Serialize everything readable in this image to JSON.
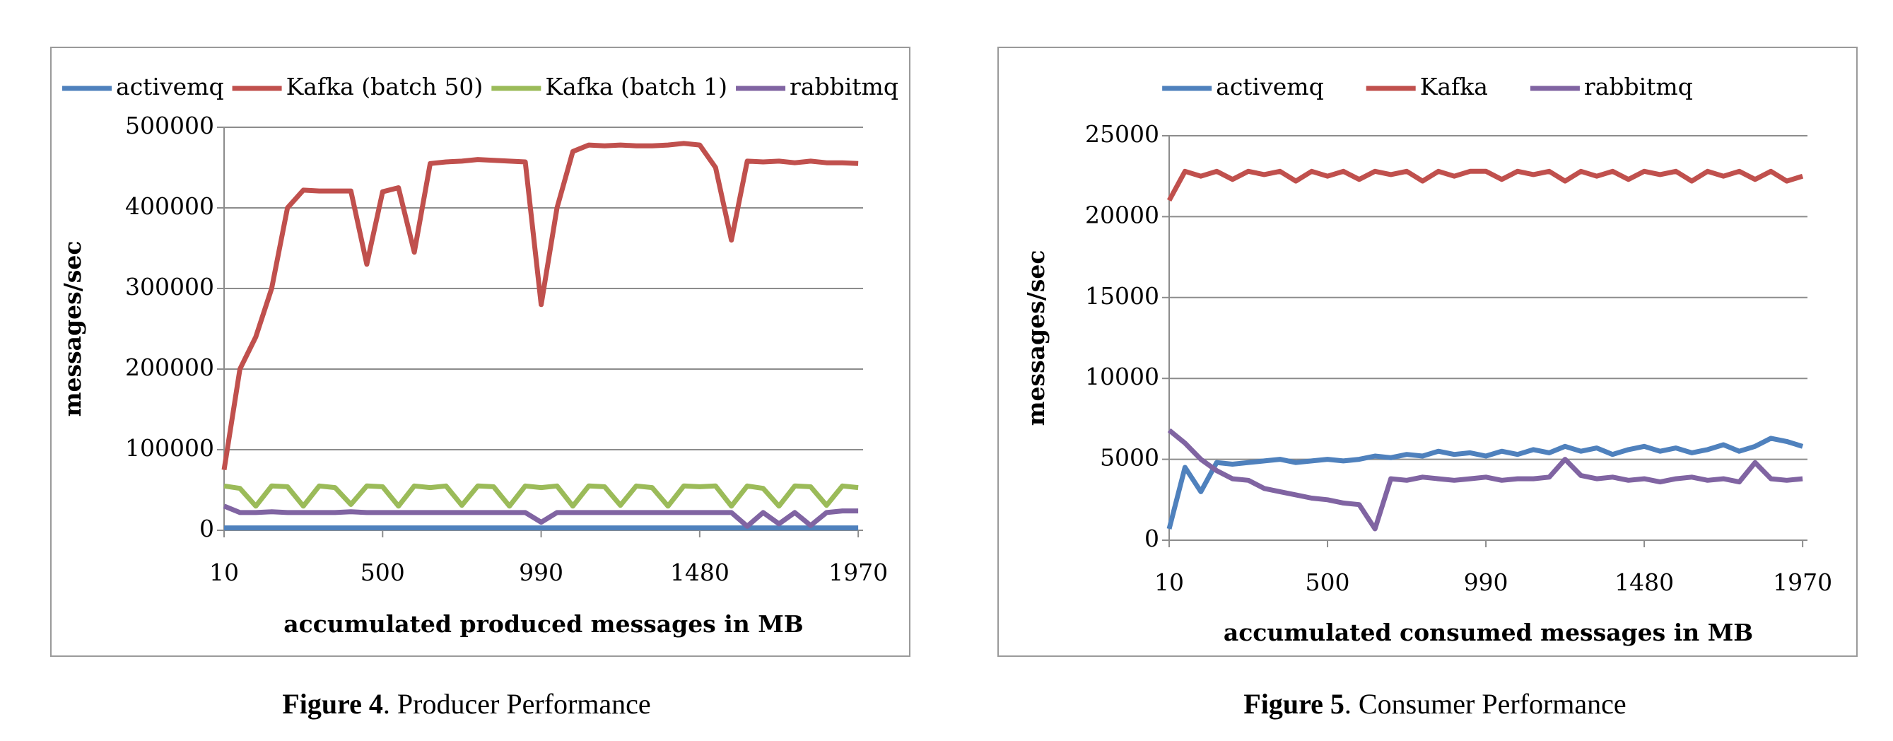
{
  "chart_data": [
    {
      "type": "line",
      "caption_label": "Figure 4",
      "caption_text": ". Producer Performance",
      "x_label": "accumulated produced messages in MB",
      "y_label": "messages/sec",
      "x": [
        10,
        59,
        108,
        157,
        206,
        255,
        304,
        353,
        402,
        451,
        500,
        549,
        598,
        647,
        696,
        745,
        794,
        843,
        892,
        941,
        990,
        1039,
        1088,
        1137,
        1186,
        1235,
        1284,
        1333,
        1382,
        1431,
        1480,
        1529,
        1578,
        1627,
        1676,
        1725,
        1774,
        1823,
        1872,
        1921,
        1970
      ],
      "xlim": [
        10,
        1985
      ],
      "xticks": [
        10,
        500,
        990,
        1480,
        1970
      ],
      "ylim": [
        0,
        500000
      ],
      "yticks": [
        0,
        100000,
        200000,
        300000,
        400000,
        500000
      ],
      "grid": true,
      "series": [
        {
          "name": "activemq",
          "color": "#4f81bd",
          "values": [
            3000,
            3000,
            3000,
            3000,
            3000,
            3000,
            3000,
            3000,
            3000,
            3000,
            3000,
            3000,
            3000,
            3000,
            3000,
            3000,
            3000,
            3000,
            3000,
            3000,
            3000,
            3000,
            3000,
            3000,
            3000,
            3000,
            3000,
            3000,
            3000,
            3000,
            3000,
            3000,
            3000,
            3000,
            3000,
            3000,
            3000,
            3000,
            3000,
            3000,
            3000
          ]
        },
        {
          "name": "Kafka (batch 50)",
          "color": "#c0504d",
          "values": [
            75000,
            200000,
            240000,
            300000,
            400000,
            422000,
            421000,
            421000,
            421000,
            330000,
            420000,
            425000,
            345000,
            455000,
            457000,
            458000,
            460000,
            459000,
            458000,
            457000,
            280000,
            400000,
            470000,
            478000,
            477000,
            478000,
            477000,
            477000,
            478000,
            480000,
            478000,
            450000,
            360000,
            458000,
            457000,
            458000,
            456000,
            458000,
            456000,
            456000,
            455000
          ]
        },
        {
          "name": "Kafka (batch 1)",
          "color": "#9bbb59",
          "values": [
            55000,
            52000,
            30000,
            55000,
            54000,
            30000,
            55000,
            53000,
            32000,
            55000,
            54000,
            30000,
            55000,
            53000,
            55000,
            31000,
            55000,
            54000,
            30000,
            55000,
            53000,
            55000,
            30000,
            55000,
            54000,
            31000,
            55000,
            53000,
            30000,
            55000,
            54000,
            55000,
            30000,
            55000,
            52000,
            30000,
            55000,
            54000,
            31000,
            55000,
            53000
          ]
        },
        {
          "name": "rabbitmq",
          "color": "#8064a2",
          "values": [
            30000,
            22000,
            22000,
            23000,
            22000,
            22000,
            22000,
            22000,
            23000,
            22000,
            22000,
            22000,
            22000,
            22000,
            22000,
            22000,
            22000,
            22000,
            22000,
            22000,
            10000,
            22000,
            22000,
            22000,
            22000,
            22000,
            22000,
            22000,
            22000,
            22000,
            22000,
            22000,
            22000,
            5000,
            22000,
            8000,
            22000,
            6000,
            22000,
            24000,
            24000
          ]
        }
      ]
    },
    {
      "type": "line",
      "caption_label": "Figure 5",
      "caption_text": ". Consumer Performance",
      "x_label": "accumulated consumed messages in MB",
      "y_label": "messages/sec",
      "x": [
        10,
        59,
        108,
        157,
        206,
        255,
        304,
        353,
        402,
        451,
        500,
        549,
        598,
        647,
        696,
        745,
        794,
        843,
        892,
        941,
        990,
        1039,
        1088,
        1137,
        1186,
        1235,
        1284,
        1333,
        1382,
        1431,
        1480,
        1529,
        1578,
        1627,
        1676,
        1725,
        1774,
        1823,
        1872,
        1921,
        1970
      ],
      "xlim": [
        10,
        1985
      ],
      "xticks": [
        10,
        500,
        990,
        1480,
        1970
      ],
      "ylim": [
        0,
        25000
      ],
      "yticks": [
        0,
        5000,
        10000,
        15000,
        20000,
        25000
      ],
      "grid": true,
      "series": [
        {
          "name": "activemq",
          "color": "#4f81bd",
          "values": [
            700,
            4500,
            3000,
            4800,
            4700,
            4800,
            4900,
            5000,
            4800,
            4900,
            5000,
            4900,
            5000,
            5200,
            5100,
            5300,
            5200,
            5500,
            5300,
            5400,
            5200,
            5500,
            5300,
            5600,
            5400,
            5800,
            5500,
            5700,
            5300,
            5600,
            5800,
            5500,
            5700,
            5400,
            5600,
            5900,
            5500,
            5800,
            6300,
            6100,
            5800
          ]
        },
        {
          "name": "Kafka",
          "color": "#c0504d",
          "values": [
            21000,
            22800,
            22500,
            22800,
            22300,
            22800,
            22600,
            22800,
            22200,
            22800,
            22500,
            22800,
            22300,
            22800,
            22600,
            22800,
            22200,
            22800,
            22500,
            22800,
            22800,
            22300,
            22800,
            22600,
            22800,
            22200,
            22800,
            22500,
            22800,
            22300,
            22800,
            22600,
            22800,
            22200,
            22800,
            22500,
            22800,
            22300,
            22800,
            22200,
            22500
          ]
        },
        {
          "name": "rabbitmq",
          "color": "#8064a2",
          "values": [
            6800,
            6000,
            5000,
            4300,
            3800,
            3700,
            3200,
            3000,
            2800,
            2600,
            2500,
            2300,
            2200,
            700,
            3800,
            3700,
            3900,
            3800,
            3700,
            3800,
            3900,
            3700,
            3800,
            3800,
            3900,
            5000,
            4000,
            3800,
            3900,
            3700,
            3800,
            3600,
            3800,
            3900,
            3700,
            3800,
            3600,
            4800,
            3800,
            3700,
            3800
          ]
        }
      ]
    }
  ]
}
